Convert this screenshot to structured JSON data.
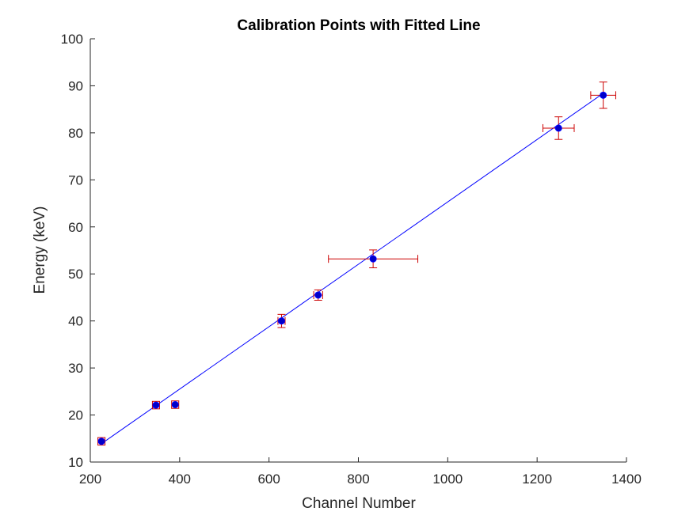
{
  "chart_data": {
    "type": "scatter",
    "title": "Calibration Points with Fitted Line",
    "xlabel": "Channel Number",
    "ylabel": "Energy (keV)",
    "xlim": [
      200,
      1400
    ],
    "ylim": [
      10,
      100
    ],
    "xticks": [
      200,
      400,
      600,
      800,
      1000,
      1200,
      1400
    ],
    "yticks": [
      10,
      20,
      30,
      40,
      50,
      60,
      70,
      80,
      90,
      100
    ],
    "grid": false,
    "legend": "none",
    "series": [
      {
        "kind": "points-with-error-bars",
        "marker_color": "#0000ff",
        "marker_fill": "#0000c8",
        "error_bar_color": "#cc0000",
        "points": [
          {
            "x": 225,
            "y": 14.4,
            "xerr": 8,
            "yerr": 0.8
          },
          {
            "x": 347,
            "y": 22.1,
            "xerr": 8,
            "yerr": 0.8
          },
          {
            "x": 390,
            "y": 22.2,
            "xerr": 8,
            "yerr": 0.8
          },
          {
            "x": 628,
            "y": 40.0,
            "xerr": 8,
            "yerr": 1.4
          },
          {
            "x": 710,
            "y": 45.5,
            "xerr": 10,
            "yerr": 1.1
          },
          {
            "x": 833,
            "y": 53.2,
            "xerr": 100,
            "yerr": 1.9
          },
          {
            "x": 1248,
            "y": 81.0,
            "xerr": 35,
            "yerr": 2.4
          },
          {
            "x": 1348,
            "y": 88.0,
            "xerr": 28,
            "yerr": 2.8
          }
        ]
      },
      {
        "kind": "fitted-line",
        "color": "#0000ff",
        "x": [
          225,
          1348
        ],
        "y": [
          13.9,
          88.4
        ]
      }
    ]
  }
}
